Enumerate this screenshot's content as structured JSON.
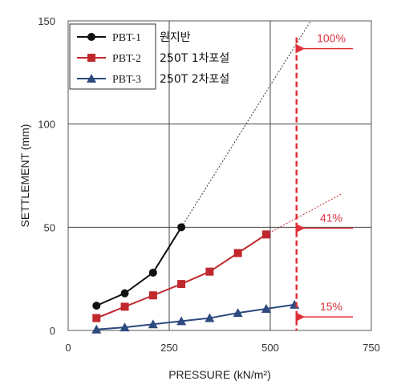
{
  "chart_data": {
    "type": "line",
    "xlabel": "PRESSURE (kN/m²)",
    "ylabel": "SETTLEMENT (mm)",
    "xlim": [
      0,
      750
    ],
    "ylim": [
      0,
      150
    ],
    "x_ticks": [
      0,
      250,
      500,
      750
    ],
    "y_ticks": [
      0,
      50,
      100,
      150
    ],
    "grid": true,
    "legend_position": "top-left",
    "series": [
      {
        "name": "PBT-1",
        "note": "원지반",
        "color": "#111111",
        "marker": "circle",
        "x": [
          70,
          140,
          210,
          280
        ],
        "y": [
          12,
          18,
          28,
          50
        ],
        "extrapolation": {
          "to": [
            600,
            150
          ],
          "style": "dotted"
        }
      },
      {
        "name": "PBT-2",
        "note": "250T 1차포설",
        "color": "#c0282d",
        "marker": "square",
        "x": [
          70,
          140,
          210,
          280,
          350,
          420,
          490
        ],
        "y": [
          6,
          11.5,
          17,
          22.5,
          28.5,
          37.5,
          46.5
        ],
        "extrapolation": {
          "to": [
            675,
            66
          ],
          "style": "dotted"
        }
      },
      {
        "name": "PBT-3",
        "note": "250T 2차포설",
        "color": "#2c4a7e",
        "marker": "triangle",
        "x": [
          70,
          140,
          210,
          280,
          350,
          420,
          490,
          560
        ],
        "y": [
          0.5,
          1.5,
          3,
          4.5,
          6,
          8.5,
          10.5,
          12.5
        ]
      }
    ],
    "reference_line": {
      "x": 565,
      "color": "#e0303a",
      "style": "dashed"
    },
    "annotations": [
      {
        "text": "100%",
        "y": 142
      },
      {
        "text": "41%",
        "y": 55
      },
      {
        "text": "15%",
        "y": 12
      }
    ]
  }
}
